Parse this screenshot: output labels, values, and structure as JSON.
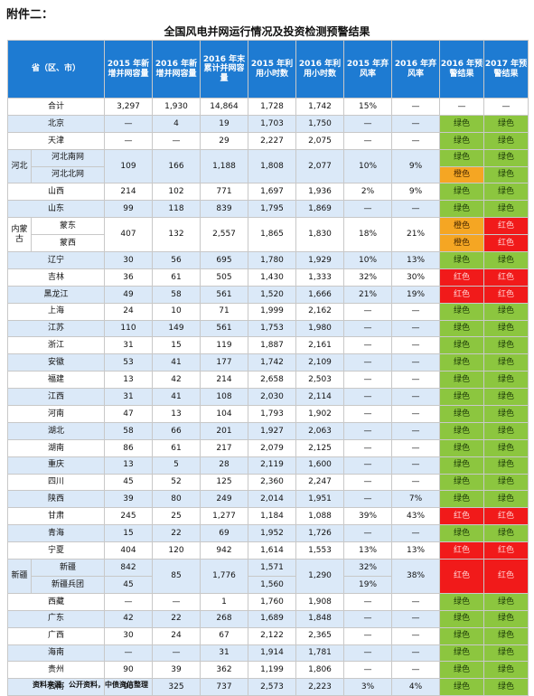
{
  "annex": "附件二：",
  "title": "全国风电并网运行情况及投资检测预警结果",
  "headers": [
    "省（区、市）",
    "2015 年新增并网容量",
    "2016 年新增并网容量",
    "2016 年末累计并网容量",
    "2015 年利用小时数",
    "2016 年利用小时数",
    "2015 年弃风率",
    "2016 年弃风率",
    "2016 年预警结果",
    "2017 年预警结果"
  ],
  "colors": {
    "header": "#1e7bd2",
    "stripe": "#dbe9f8",
    "green": "#8cc63f",
    "orange": "#f5a623",
    "red": "#f11a1a"
  },
  "rows": [
    {
      "name": "合计",
      "v": [
        "3,297",
        "1,930",
        "14,864",
        "1,728",
        "1,742",
        "15%",
        "—"
      ],
      "w16": "—",
      "w17": "—",
      "l16": "none",
      "l17": "none"
    },
    {
      "name": "北京",
      "v": [
        "—",
        "4",
        "19",
        "1,703",
        "1,750",
        "—",
        "—"
      ],
      "w16": "绿色",
      "w17": "绿色",
      "l16": "green",
      "l17": "green"
    },
    {
      "name": "天津",
      "v": [
        "—",
        "—",
        "29",
        "2,227",
        "2,075",
        "—",
        "—"
      ],
      "w16": "绿色",
      "w17": "绿色",
      "l16": "green",
      "l17": "green"
    },
    {
      "group": "河北",
      "sub": [
        "河北南网",
        "河北北网"
      ],
      "v": [
        "109",
        "166",
        "1,188",
        "1,808",
        "2,077",
        "10%",
        "9%"
      ],
      "w16": [
        "绿色",
        "橙色"
      ],
      "w17": [
        "绿色",
        "绿色"
      ],
      "l16": [
        "green",
        "orange"
      ],
      "l17": [
        "green",
        "green"
      ]
    },
    {
      "name": "山西",
      "v": [
        "214",
        "102",
        "771",
        "1,697",
        "1,936",
        "2%",
        "9%"
      ],
      "w16": "绿色",
      "w17": "绿色",
      "l16": "green",
      "l17": "green"
    },
    {
      "name": "山东",
      "v": [
        "99",
        "118",
        "839",
        "1,795",
        "1,869",
        "—",
        "—"
      ],
      "w16": "绿色",
      "w17": "绿色",
      "l16": "green",
      "l17": "green"
    },
    {
      "group": "内蒙古",
      "sub": [
        "蒙东",
        "蒙西"
      ],
      "v": [
        "407",
        "132",
        "2,557",
        "1,865",
        "1,830",
        "18%",
        "21%"
      ],
      "w16": [
        "橙色",
        "橙色"
      ],
      "w17": [
        "红色",
        "红色"
      ],
      "l16": [
        "orange",
        "orange"
      ],
      "l17": [
        "red",
        "red"
      ]
    },
    {
      "name": "辽宁",
      "v": [
        "30",
        "56",
        "695",
        "1,780",
        "1,929",
        "10%",
        "13%"
      ],
      "w16": "绿色",
      "w17": "绿色",
      "l16": "green",
      "l17": "green"
    },
    {
      "name": "吉林",
      "v": [
        "36",
        "61",
        "505",
        "1,430",
        "1,333",
        "32%",
        "30%"
      ],
      "w16": "红色",
      "w17": "红色",
      "l16": "red",
      "l17": "red"
    },
    {
      "name": "黑龙江",
      "v": [
        "49",
        "58",
        "561",
        "1,520",
        "1,666",
        "21%",
        "19%"
      ],
      "w16": "红色",
      "w17": "红色",
      "l16": "red",
      "l17": "red"
    },
    {
      "name": "上海",
      "v": [
        "24",
        "10",
        "71",
        "1,999",
        "2,162",
        "—",
        "—"
      ],
      "w16": "绿色",
      "w17": "绿色",
      "l16": "green",
      "l17": "green"
    },
    {
      "name": "江苏",
      "v": [
        "110",
        "149",
        "561",
        "1,753",
        "1,980",
        "—",
        "—"
      ],
      "w16": "绿色",
      "w17": "绿色",
      "l16": "green",
      "l17": "green"
    },
    {
      "name": "浙江",
      "v": [
        "31",
        "15",
        "119",
        "1,887",
        "2,161",
        "—",
        "—"
      ],
      "w16": "绿色",
      "w17": "绿色",
      "l16": "green",
      "l17": "green"
    },
    {
      "name": "安徽",
      "v": [
        "53",
        "41",
        "177",
        "1,742",
        "2,109",
        "—",
        "—"
      ],
      "w16": "绿色",
      "w17": "绿色",
      "l16": "green",
      "l17": "green"
    },
    {
      "name": "福建",
      "v": [
        "13",
        "42",
        "214",
        "2,658",
        "2,503",
        "—",
        "—"
      ],
      "w16": "绿色",
      "w17": "绿色",
      "l16": "green",
      "l17": "green"
    },
    {
      "name": "江西",
      "v": [
        "31",
        "41",
        "108",
        "2,030",
        "2,114",
        "—",
        "—"
      ],
      "w16": "绿色",
      "w17": "绿色",
      "l16": "green",
      "l17": "green"
    },
    {
      "name": "河南",
      "v": [
        "47",
        "13",
        "104",
        "1,793",
        "1,902",
        "—",
        "—"
      ],
      "w16": "绿色",
      "w17": "绿色",
      "l16": "green",
      "l17": "green"
    },
    {
      "name": "湖北",
      "v": [
        "58",
        "66",
        "201",
        "1,927",
        "2,063",
        "—",
        "—"
      ],
      "w16": "绿色",
      "w17": "绿色",
      "l16": "green",
      "l17": "green"
    },
    {
      "name": "湖南",
      "v": [
        "86",
        "61",
        "217",
        "2,079",
        "2,125",
        "—",
        "—"
      ],
      "w16": "绿色",
      "w17": "绿色",
      "l16": "green",
      "l17": "green"
    },
    {
      "name": "重庆",
      "v": [
        "13",
        "5",
        "28",
        "2,119",
        "1,600",
        "—",
        "—"
      ],
      "w16": "绿色",
      "w17": "绿色",
      "l16": "green",
      "l17": "green"
    },
    {
      "name": "四川",
      "v": [
        "45",
        "52",
        "125",
        "2,360",
        "2,247",
        "—",
        "—"
      ],
      "w16": "绿色",
      "w17": "绿色",
      "l16": "green",
      "l17": "green"
    },
    {
      "name": "陕西",
      "v": [
        "39",
        "80",
        "249",
        "2,014",
        "1,951",
        "—",
        "7%"
      ],
      "w16": "绿色",
      "w17": "绿色",
      "l16": "green",
      "l17": "green"
    },
    {
      "name": "甘肃",
      "v": [
        "245",
        "25",
        "1,277",
        "1,184",
        "1,088",
        "39%",
        "43%"
      ],
      "w16": "红色",
      "w17": "红色",
      "l16": "red",
      "l17": "red"
    },
    {
      "name": "青海",
      "v": [
        "15",
        "22",
        "69",
        "1,952",
        "1,726",
        "—",
        "—"
      ],
      "w16": "绿色",
      "w17": "绿色",
      "l16": "green",
      "l17": "green"
    },
    {
      "name": "宁夏",
      "v": [
        "404",
        "120",
        "942",
        "1,614",
        "1,553",
        "13%",
        "13%"
      ],
      "w16": "红色",
      "w17": "红色",
      "l16": "red",
      "l17": "red"
    },
    {
      "group": "新疆",
      "sub": [
        "新疆",
        "新疆兵团"
      ],
      "v2015": [
        "842",
        "45"
      ],
      "v": [
        "85",
        "1,776",
        "1,290",
        "38%"
      ],
      "h2015": [
        "1,571",
        "1,560"
      ],
      "c2015": [
        "32%",
        "19%"
      ],
      "w16": "红色",
      "w17": "红色",
      "l16": "red",
      "l17": "red"
    },
    {
      "name": "西藏",
      "v": [
        "—",
        "—",
        "1",
        "1,760",
        "1,908",
        "—",
        "—"
      ],
      "w16": "绿色",
      "w17": "绿色",
      "l16": "green",
      "l17": "green"
    },
    {
      "name": "广东",
      "v": [
        "42",
        "22",
        "268",
        "1,689",
        "1,848",
        "—",
        "—"
      ],
      "w16": "绿色",
      "w17": "绿色",
      "l16": "green",
      "l17": "green"
    },
    {
      "name": "广西",
      "v": [
        "30",
        "24",
        "67",
        "2,122",
        "2,365",
        "—",
        "—"
      ],
      "w16": "绿色",
      "w17": "绿色",
      "l16": "green",
      "l17": "green"
    },
    {
      "name": "海南",
      "v": [
        "—",
        "—",
        "31",
        "1,914",
        "1,781",
        "—",
        "—"
      ],
      "w16": "绿色",
      "w17": "绿色",
      "l16": "green",
      "l17": "green"
    },
    {
      "name": "贵州",
      "v": [
        "90",
        "39",
        "362",
        "1,199",
        "1,806",
        "—",
        "—"
      ],
      "w16": "绿色",
      "w17": "绿色",
      "l16": "green",
      "l17": "green"
    },
    {
      "name": "云南",
      "v": [
        "90",
        "325",
        "737",
        "2,573",
        "2,223",
        "3%",
        "4%"
      ],
      "w16": "绿色",
      "w17": "绿色",
      "l16": "green",
      "l17": "green"
    }
  ],
  "source": "资料来源：公开资料，中债资信整理"
}
